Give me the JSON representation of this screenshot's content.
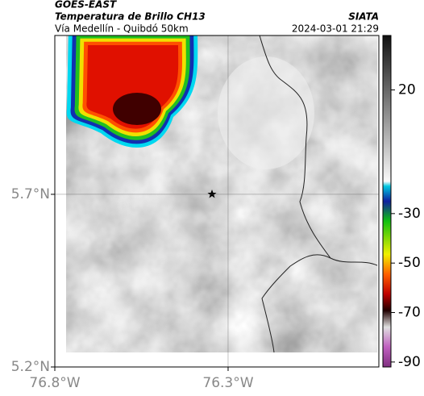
{
  "header": {
    "left_title": "GOES-EAST",
    "subtitle": "Temperatura de Brillo CH13",
    "route": "Vía Medellín - Quibdó 50km",
    "right_title": "SIATA",
    "datetime": "2024-03-01 21:29"
  },
  "map": {
    "xlim": [
      -76.8,
      -75.865
    ],
    "ylim": [
      5.2,
      6.16
    ],
    "xticks": [
      {
        "value": -76.8,
        "label": "76.8°W"
      },
      {
        "value": -76.3,
        "label": "76.3°W"
      }
    ],
    "yticks": [
      {
        "value": 5.7,
        "label": "5.7°N"
      },
      {
        "value": 5.2,
        "label": "5.2°N"
      }
    ],
    "grid": true
  },
  "colorbar": {
    "lim": [
      -92,
      42
    ],
    "ticks": [
      20,
      -30,
      -50,
      -70,
      -90
    ]
  }
}
